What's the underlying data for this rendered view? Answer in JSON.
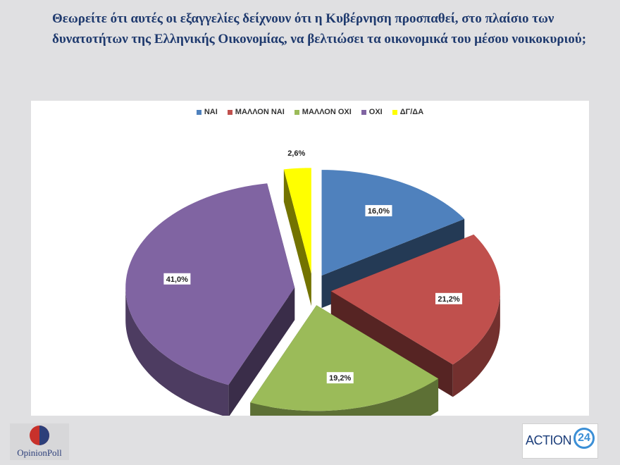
{
  "question": "Θεωρείτε ότι αυτές οι εξαγγελίες δείχνουν ότι η Κυβέρνηση προσπαθεί, στο πλαίσιο των δυνατοτήτων της Ελληνικής Οικονομίας, να βελτιώσει τα οικονομικά του μέσου νοικοκυριού;",
  "chart_data": {
    "type": "pie",
    "title": "",
    "categories": [
      "ΝΑΙ",
      "ΜΑΛΛΟΝ ΝΑΙ",
      "ΜΑΛΛΟΝ ΟΧΙ",
      "ΟΧΙ",
      "ΔΓ/ΔΑ"
    ],
    "values": [
      16.0,
      21.2,
      19.2,
      41.0,
      2.6
    ],
    "value_labels": [
      "16,0%",
      "21,2%",
      "19,2%",
      "41,0%",
      "2,6%"
    ],
    "colors": [
      "#4f81bd",
      "#c0504d",
      "#9bbb59",
      "#8064a2",
      "#ffff00"
    ],
    "legend_position": "top",
    "style": "3d-exploded"
  },
  "logos": {
    "left": {
      "text": "OpinionPoll"
    },
    "right": {
      "text": "ACTION",
      "number": "24"
    }
  }
}
